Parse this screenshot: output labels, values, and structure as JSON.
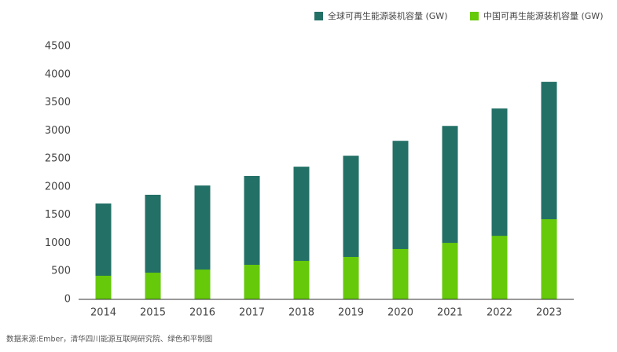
{
  "chart_data": {
    "type": "bar",
    "categories": [
      "2014",
      "2015",
      "2016",
      "2017",
      "2018",
      "2019",
      "2020",
      "2021",
      "2022",
      "2023"
    ],
    "series": [
      {
        "name": "全球可再生能源装机容量 (GW)",
        "color": "#237067",
        "values": [
          1705,
          1860,
          2025,
          2195,
          2360,
          2555,
          2820,
          3085,
          3395,
          3870
        ]
      },
      {
        "name": "中国可再生能源装机容量 (GW)",
        "color": "#66c90a",
        "values": [
          420,
          475,
          530,
          615,
          685,
          755,
          895,
          1005,
          1130,
          1425
        ]
      }
    ],
    "ylim": [
      0,
      4500
    ],
    "yticks": [
      0,
      500,
      1000,
      1500,
      2000,
      2500,
      3000,
      3500,
      4000,
      4500
    ],
    "grid": false,
    "legend": "top-right",
    "source": "数据来源:Ember，清华四川能源互联网研究院、绿色和平制图"
  }
}
